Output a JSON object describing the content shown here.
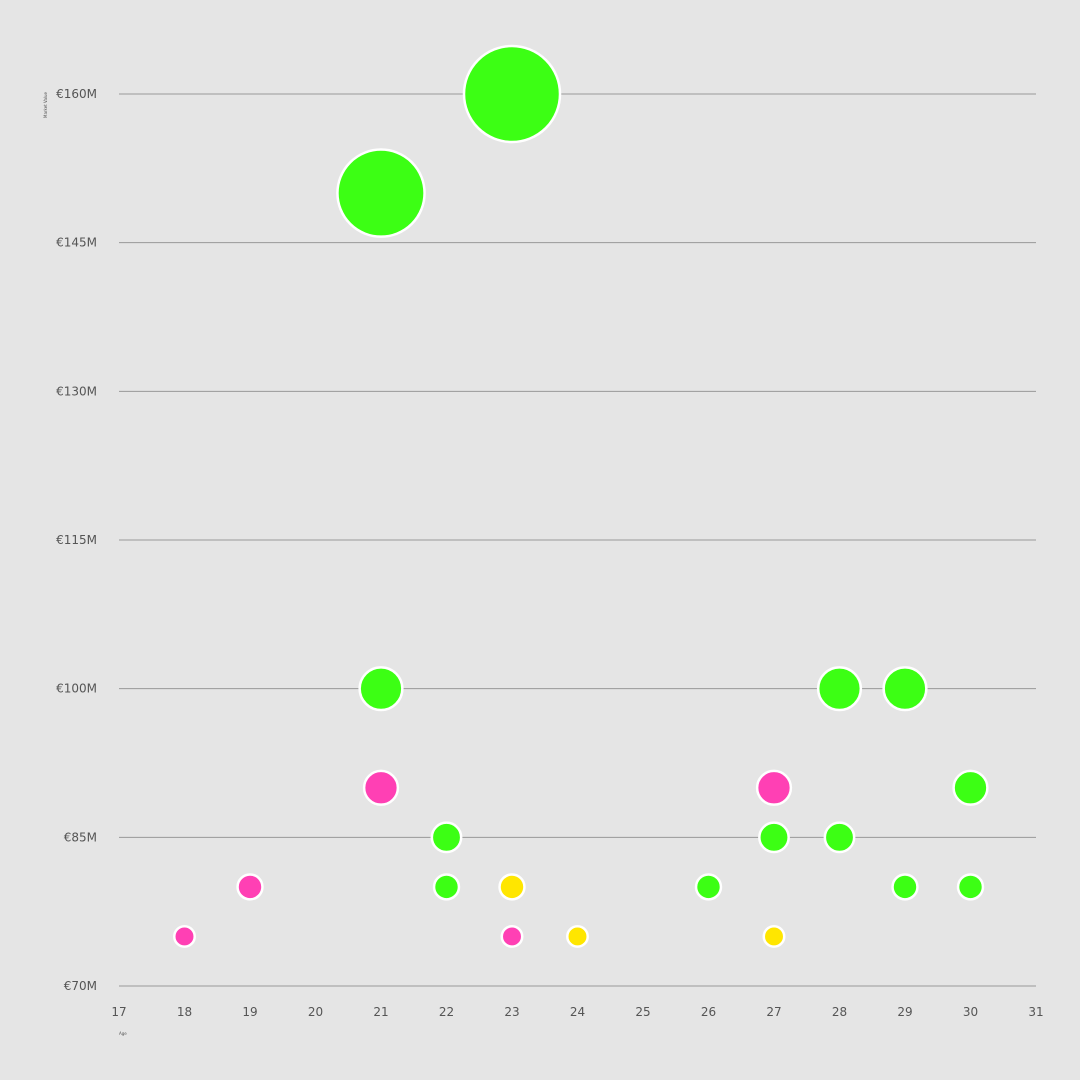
{
  "chart_data": {
    "type": "scatter",
    "subtype": "bubble",
    "xlabel": "Age",
    "ylabel": "Market Value",
    "xlim": [
      17,
      31
    ],
    "ylim": [
      70,
      160
    ],
    "x_ticks": [
      17,
      18,
      19,
      20,
      21,
      22,
      23,
      24,
      25,
      26,
      27,
      28,
      29,
      30,
      31
    ],
    "y_ticks": [
      70,
      85,
      100,
      115,
      130,
      145,
      160
    ],
    "y_tick_labels": [
      "€70M",
      "€85M",
      "€100M",
      "€115M",
      "€130M",
      "€145M",
      "€160M"
    ],
    "grid": "horizontal",
    "legend": "none",
    "colors": {
      "green": "#3cff14",
      "pink": "#ff40b4",
      "yellow": "#ffe600",
      "background": "#e5e5e5",
      "outline": "#ffffff",
      "grid": "#999999"
    },
    "points": [
      {
        "x": 23,
        "y": 160,
        "color": "green"
      },
      {
        "x": 21,
        "y": 150,
        "color": "green"
      },
      {
        "x": 21,
        "y": 100,
        "color": "green"
      },
      {
        "x": 28,
        "y": 100,
        "color": "green"
      },
      {
        "x": 29,
        "y": 100,
        "color": "green"
      },
      {
        "x": 21,
        "y": 90,
        "color": "pink"
      },
      {
        "x": 27,
        "y": 90,
        "color": "pink"
      },
      {
        "x": 30,
        "y": 90,
        "color": "green"
      },
      {
        "x": 22,
        "y": 85,
        "color": "green"
      },
      {
        "x": 27,
        "y": 85,
        "color": "green"
      },
      {
        "x": 28,
        "y": 85,
        "color": "green"
      },
      {
        "x": 19,
        "y": 80,
        "color": "pink"
      },
      {
        "x": 22,
        "y": 80,
        "color": "green"
      },
      {
        "x": 23,
        "y": 80,
        "color": "yellow"
      },
      {
        "x": 26,
        "y": 80,
        "color": "green"
      },
      {
        "x": 29,
        "y": 80,
        "color": "green"
      },
      {
        "x": 30,
        "y": 80,
        "color": "green"
      },
      {
        "x": 18,
        "y": 75,
        "color": "pink"
      },
      {
        "x": 23,
        "y": 75,
        "color": "pink"
      },
      {
        "x": 24,
        "y": 75,
        "color": "yellow"
      },
      {
        "x": 27,
        "y": 75,
        "color": "yellow"
      }
    ]
  }
}
